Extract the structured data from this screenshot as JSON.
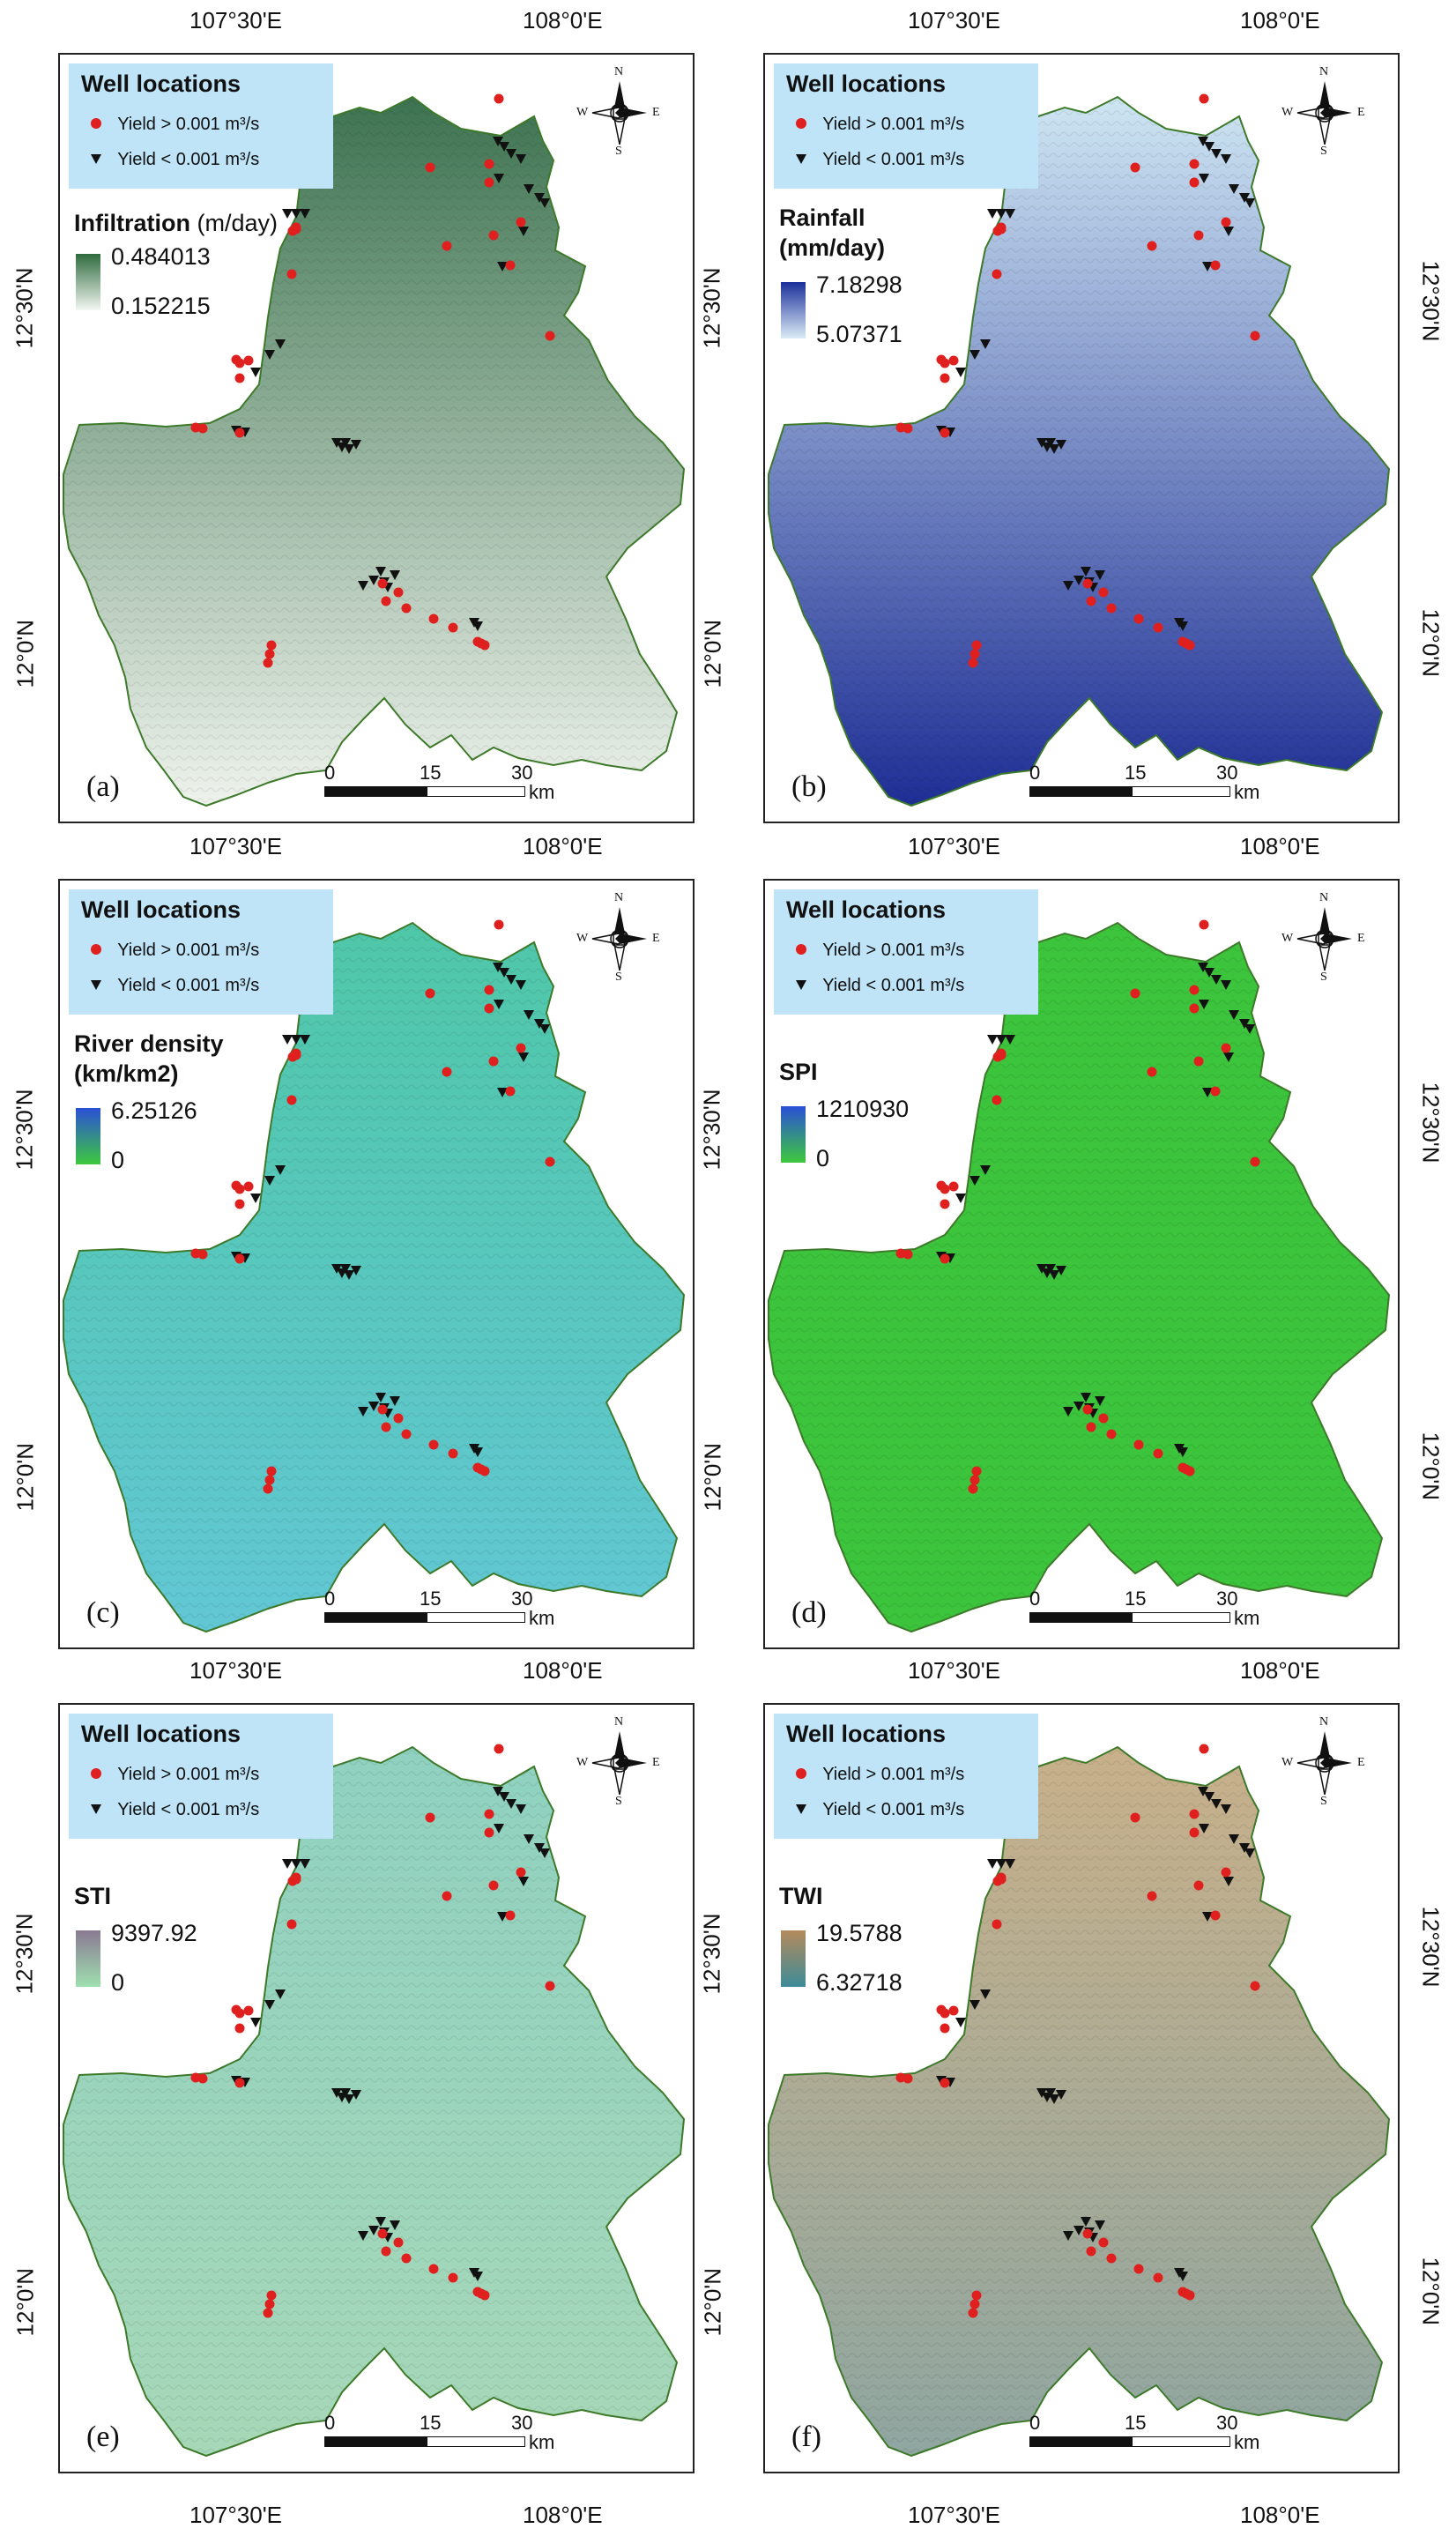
{
  "axes": {
    "lon_label_1": "107°30'E",
    "lon_label_2": "108°0'E",
    "lat_label_1": "12°30'N",
    "lat_label_2": "12°0'N"
  },
  "legend": {
    "title": "Well locations",
    "yield_high": "Yield > 0.001 m³/s",
    "yield_low": "Yield < 0.001 m³/s"
  },
  "north_arrow": {
    "n": "N",
    "s": "S",
    "e": "E",
    "w": "W",
    "icon": "compass-rose-icon"
  },
  "scalebar": {
    "t0": "0",
    "t1": "15",
    "t2": "30",
    "unit": "km"
  },
  "panels": [
    {
      "tag": "(a)",
      "title": "Infiltration",
      "unit": " (m/day)",
      "max": "0.484013",
      "min": "0.152215",
      "ramp": [
        "#2f6b3e",
        "#f3f7f2"
      ],
      "fill_top": "#3d7350",
      "fill_bottom": "#eef3ec"
    },
    {
      "tag": "(b)",
      "title": "Rainfall",
      "unit": "(mm/day)",
      "max": "7.18298",
      "min": "5.07371",
      "ramp": [
        "#1a2f9a",
        "#dcecf7"
      ],
      "fill_top": "#cfe6f3",
      "fill_bottom": "#1e2e95"
    },
    {
      "tag": "(c)",
      "title": "River density",
      "unit": "(km/km2)",
      "max": "6.25126",
      "min": "0",
      "ramp": [
        "#2a4fd6",
        "#3ec93e"
      ],
      "fill_top": "#4fc7a8",
      "fill_bottom": "#62c7d4"
    },
    {
      "tag": "(d)",
      "title": "SPI",
      "unit": "",
      "max": "1210930",
      "min": "0",
      "ramp": [
        "#2a4fd6",
        "#3ec93e"
      ],
      "fill_top": "#3cc43c",
      "fill_bottom": "#3cc43c"
    },
    {
      "tag": "(e)",
      "title": "STI",
      "unit": "",
      "max": "9397.92",
      "min": "0",
      "ramp": [
        "#8a7a93",
        "#9fe0b0"
      ],
      "fill_top": "#8fd1c0",
      "fill_bottom": "#a7d8b8"
    },
    {
      "tag": "(f)",
      "title": "TWI",
      "unit": "",
      "max": "19.5788",
      "min": "6.32718",
      "ramp": [
        "#b48a5c",
        "#3d8b98"
      ],
      "fill_top": "#c8b08a",
      "fill_bottom": "#8fa6a0"
    }
  ],
  "colors": {
    "boundary": "#3d7a2a",
    "well_high": "#e0201e",
    "well_low": "#111111"
  }
}
